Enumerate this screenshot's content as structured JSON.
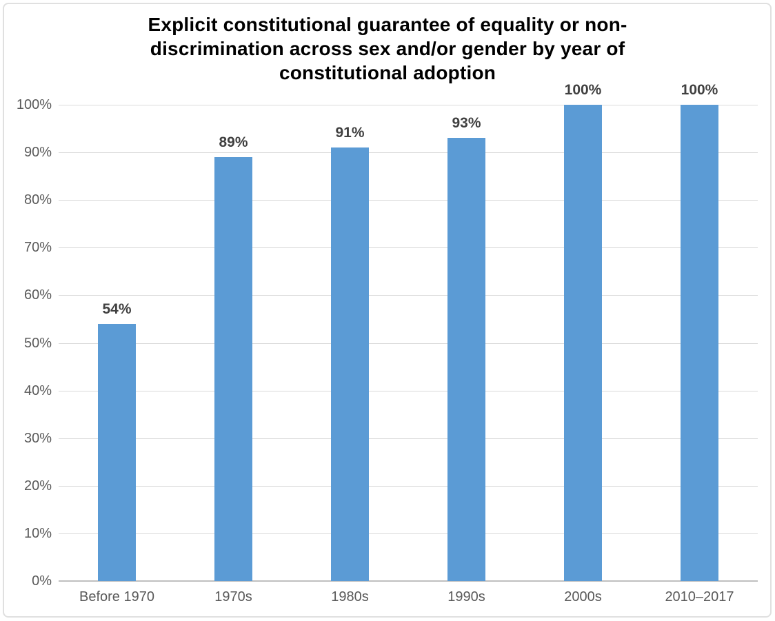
{
  "chart_data": {
    "type": "bar",
    "title": "Explicit constitutional guarantee of equality or non-discrimination across sex and/or gender by year of constitutional adoption",
    "title_lines": [
      "Explicit constitutional guarantee of equality or non-",
      "discrimination across sex and/or gender by year of",
      "constitutional adoption"
    ],
    "categories": [
      "Before 1970",
      "1970s",
      "1980s",
      "1990s",
      "2000s",
      "2010–2017"
    ],
    "values": [
      54,
      89,
      91,
      93,
      100,
      100
    ],
    "data_labels": [
      "54%",
      "89%",
      "91%",
      "93%",
      "100%",
      "100%"
    ],
    "xlabel": "",
    "ylabel": "",
    "ylim": [
      0,
      100
    ],
    "y_tick_step": 10,
    "y_tick_labels": [
      "0%",
      "10%",
      "20%",
      "30%",
      "40%",
      "50%",
      "60%",
      "70%",
      "80%",
      "90%",
      "100%"
    ],
    "grid": true,
    "legend": "none",
    "colors": {
      "bar": "#5B9BD5",
      "gridline": "#D9D9D9",
      "axis_line": "#BFBFBF",
      "tick_label": "#595959",
      "data_label": "#404040",
      "title": "#000000",
      "frame_border": "#E0E0E0",
      "background": "#FFFFFF"
    }
  }
}
